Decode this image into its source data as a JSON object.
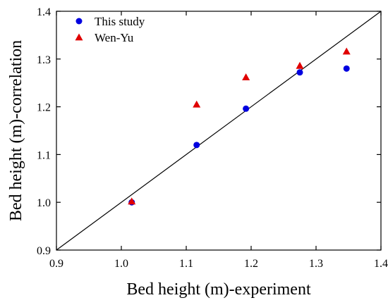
{
  "chart_data": {
    "type": "scatter",
    "title": "",
    "xlabel": "Bed height (m)-experiment",
    "ylabel": "Bed height (m)-correlation",
    "xlim": [
      0.9,
      1.4
    ],
    "ylim": [
      0.9,
      1.4
    ],
    "xticks": [
      "0.9",
      "1.0",
      "1.1",
      "1.2",
      "1.3",
      "1.4"
    ],
    "yticks": [
      "0.9",
      "1.0",
      "1.1",
      "1.2",
      "1.3",
      "1.4"
    ],
    "grid": false,
    "legend_position": "top-left",
    "reference_line": "y = x",
    "series": [
      {
        "name": "This study",
        "marker": "circle",
        "color": "#0000e0",
        "x": [
          1.016,
          1.116,
          1.192,
          1.275,
          1.347
        ],
        "y": [
          1.0,
          1.12,
          1.196,
          1.272,
          1.28
        ]
      },
      {
        "name": "Wen-Yu",
        "marker": "triangle",
        "color": "#e00000",
        "x": [
          1.016,
          1.116,
          1.192,
          1.275,
          1.347
        ],
        "y": [
          1.002,
          1.205,
          1.262,
          1.286,
          1.316
        ]
      }
    ]
  }
}
